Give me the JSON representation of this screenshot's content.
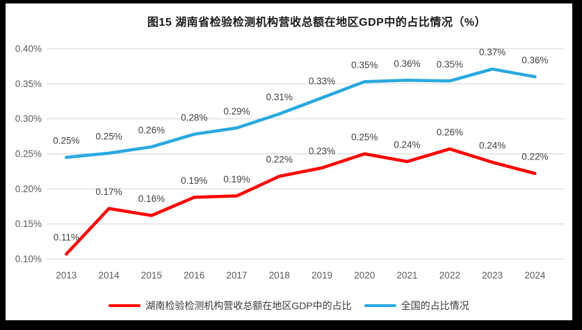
{
  "figure": {
    "frame_color": "#000000",
    "background": "#ffffff"
  },
  "chart_data": {
    "type": "line",
    "title": "图15 湖南省检验检测机构营收总额在地区GDP中的占比情况（%）",
    "categories": [
      "2013",
      "2014",
      "2015",
      "2016",
      "2017",
      "2018",
      "2019",
      "2020",
      "2021",
      "2022",
      "2023",
      "2024"
    ],
    "series": [
      {
        "name": "湖南检验检测机构营收总额在地区GDP中的占比",
        "color": "#FF0000",
        "values": [
          0.11,
          0.17,
          0.16,
          0.19,
          0.19,
          0.22,
          0.23,
          0.25,
          0.24,
          0.26,
          0.24,
          0.22
        ],
        "labels": [
          "0.11%",
          "0.17%",
          "0.16%",
          "0.19%",
          "0.19%",
          "0.22%",
          "0.23%",
          "0.25%",
          "0.24%",
          "0.26%",
          "0.24%",
          "0.22%"
        ],
        "plot_values": [
          0.107,
          0.172,
          0.162,
          0.188,
          0.19,
          0.218,
          0.23,
          0.25,
          0.239,
          0.257,
          0.238,
          0.222
        ]
      },
      {
        "name": "全国的占比情况",
        "color": "#29A9E0",
        "values": [
          0.25,
          0.25,
          0.26,
          0.28,
          0.29,
          0.31,
          0.33,
          0.35,
          0.36,
          0.35,
          0.37,
          0.36
        ],
        "labels": [
          "0.25%",
          "0.25%",
          "0.26%",
          "0.28%",
          "0.29%",
          "0.31%",
          "0.33%",
          "0.35%",
          "0.36%",
          "0.35%",
          "0.37%",
          "0.36%"
        ],
        "plot_values": [
          0.245,
          0.251,
          0.26,
          0.278,
          0.287,
          0.307,
          0.33,
          0.353,
          0.355,
          0.354,
          0.371,
          0.36
        ]
      }
    ],
    "ylim": [
      0.1,
      0.4
    ],
    "y_tick_step": 0.05,
    "y_ticks": [
      "0.40%",
      "0.35%",
      "0.30%",
      "0.25%",
      "0.20%",
      "0.15%",
      "0.10%"
    ],
    "grid": true,
    "gridline_color": "#D9D9D9",
    "axis_label_color": "#595959",
    "data_label_color": "#404040",
    "legend_position": "bottom"
  },
  "legend": {
    "items": [
      {
        "label": "湖南检验检测机构营收总额在地区GDP中的占比",
        "color": "#FF0000"
      },
      {
        "label": "全国的占比情况",
        "color": "#29A9E0"
      }
    ]
  }
}
